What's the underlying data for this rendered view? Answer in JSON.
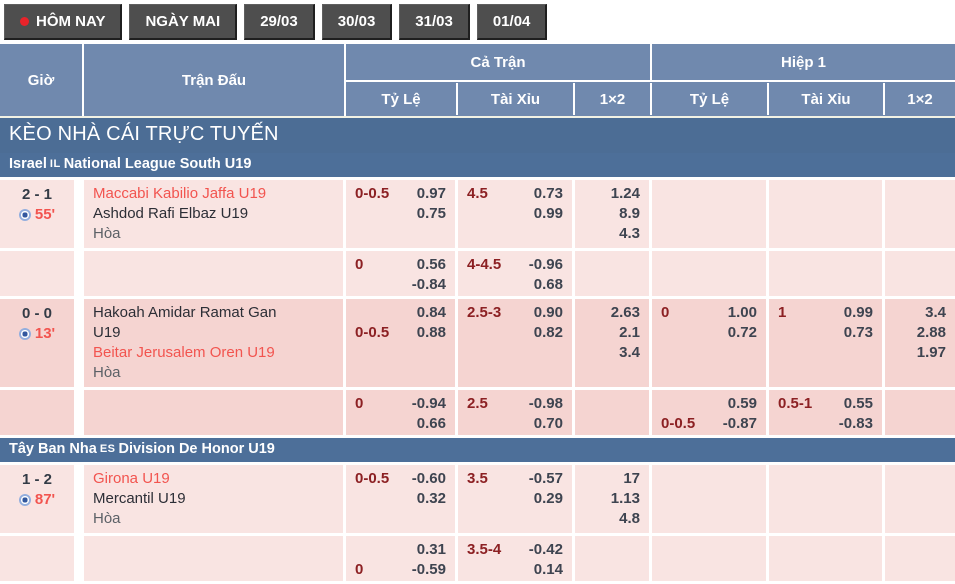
{
  "tabs": [
    {
      "label": "HÔM NAY",
      "active": true
    },
    {
      "label": "NGÀY MAI"
    },
    {
      "label": "29/03"
    },
    {
      "label": "30/03"
    },
    {
      "label": "31/03"
    },
    {
      "label": "01/04"
    }
  ],
  "table": {
    "section_title": "KÈO NHÀ CÁI TRỰC TUYẾN",
    "headers": {
      "time": "Giờ",
      "match": "Trận Đấu",
      "full": "Cả Trận",
      "half": "Hiệp 1",
      "hdp": "Tỷ Lệ",
      "ou": "Tài Xỉu",
      "onextwo": "1×2"
    }
  },
  "leagues": [
    {
      "country": "Israel",
      "code": "IL",
      "name": "National League South U19"
    },
    {
      "country": "Tây Ban Nha",
      "code": "ES",
      "name": "Division De Honor U19"
    }
  ],
  "colors": {
    "header_blue": "#7089ae",
    "section_blue": "#4c6d95",
    "row_pink_light": "#f9e4e2",
    "row_pink_dark": "#f5d4d1",
    "team_red": "#f2544f",
    "handicap_maroon": "#8c2023",
    "odds_slate": "#3e4450",
    "tab_gray": "#4e4e4e",
    "live_dot_red": "#e8232a"
  },
  "matches": [
    {
      "score": "2 - 1",
      "time": "55'",
      "home": "Maccabi Kabilio Jaffa U19",
      "away": "Ashdod Rafi Elbaz U19",
      "draw": "Hòa",
      "main": {
        "fh": {
          "l1": "0-0.5",
          "v1": "0.97",
          "l2": "",
          "v2": "0.75"
        },
        "fo": {
          "l1": "4.5",
          "v1": "0.73",
          "l2": "",
          "v2": "0.99"
        },
        "fx": [
          "1.24",
          "8.9",
          "4.3"
        ],
        "hh": {
          "l1": "",
          "v1": "",
          "l2": "",
          "v2": ""
        },
        "ho": {
          "l1": "",
          "v1": "",
          "l2": "",
          "v2": ""
        },
        "hx": [
          "",
          "",
          ""
        ]
      },
      "sub": {
        "fh": {
          "l1": "0",
          "v1": "0.56",
          "l2": "",
          "v2": "-0.84"
        },
        "fo": {
          "l1": "4-4.5",
          "v1": "-0.96",
          "l2": "",
          "v2": "0.68"
        },
        "fx": [
          "",
          "",
          ""
        ],
        "hh": {
          "l1": "",
          "v1": "",
          "l2": "",
          "v2": ""
        },
        "ho": {
          "l1": "",
          "v1": "",
          "l2": "",
          "v2": ""
        },
        "hx": [
          "",
          "",
          ""
        ]
      }
    },
    {
      "score": "0 - 0",
      "time": "13'",
      "home": "Hakoah Amidar Ramat Gan\nU19",
      "away": "Beitar Jerusalem Oren U19",
      "draw": "Hòa",
      "main": {
        "fh": {
          "l1": "",
          "v1": "0.84",
          "l2": "0-0.5",
          "v2": "0.88"
        },
        "fo": {
          "l1": "2.5-3",
          "v1": "0.90",
          "l2": "",
          "v2": "0.82"
        },
        "fx": [
          "2.63",
          "2.1",
          "3.4"
        ],
        "hh": {
          "l1": "0",
          "v1": "1.00",
          "l2": "",
          "v2": "0.72"
        },
        "ho": {
          "l1": "1",
          "v1": "0.99",
          "l2": "",
          "v2": "0.73"
        },
        "hx": [
          "3.4",
          "2.88",
          "1.97"
        ]
      },
      "sub": {
        "fh": {
          "l1": "0",
          "v1": "-0.94",
          "l2": "",
          "v2": "0.66"
        },
        "fo": {
          "l1": "2.5",
          "v1": "-0.98",
          "l2": "",
          "v2": "0.70"
        },
        "fx": [
          "",
          "",
          ""
        ],
        "hh": {
          "l1": "",
          "v1": "0.59",
          "l2": "0-0.5",
          "v2": "-0.87"
        },
        "ho": {
          "l1": "0.5-1",
          "v1": "0.55",
          "l2": "",
          "v2": "-0.83"
        },
        "hx": [
          "",
          "",
          ""
        ]
      }
    },
    {
      "score": "1 - 2",
      "time": "87'",
      "home": "Girona U19",
      "away": "Mercantil U19",
      "draw": "Hòa",
      "main": {
        "fh": {
          "l1": "0-0.5",
          "v1": "-0.60",
          "l2": "",
          "v2": "0.32"
        },
        "fo": {
          "l1": "3.5",
          "v1": "-0.57",
          "l2": "",
          "v2": "0.29"
        },
        "fx": [
          "17",
          "1.13",
          "4.8"
        ],
        "hh": {
          "l1": "",
          "v1": "",
          "l2": "",
          "v2": ""
        },
        "ho": {
          "l1": "",
          "v1": "",
          "l2": "",
          "v2": ""
        },
        "hx": [
          "",
          "",
          ""
        ]
      },
      "sub": {
        "fh": {
          "l1": "",
          "v1": "0.31",
          "l2": "0",
          "v2": "-0.59"
        },
        "fo": {
          "l1": "3.5-4",
          "v1": "-0.42",
          "l2": "",
          "v2": "0.14"
        },
        "fx": [
          "",
          "",
          ""
        ],
        "hh": {
          "l1": "",
          "v1": "",
          "l2": "",
          "v2": ""
        },
        "ho": {
          "l1": "",
          "v1": "",
          "l2": "",
          "v2": ""
        },
        "hx": [
          "",
          "",
          ""
        ]
      }
    }
  ]
}
